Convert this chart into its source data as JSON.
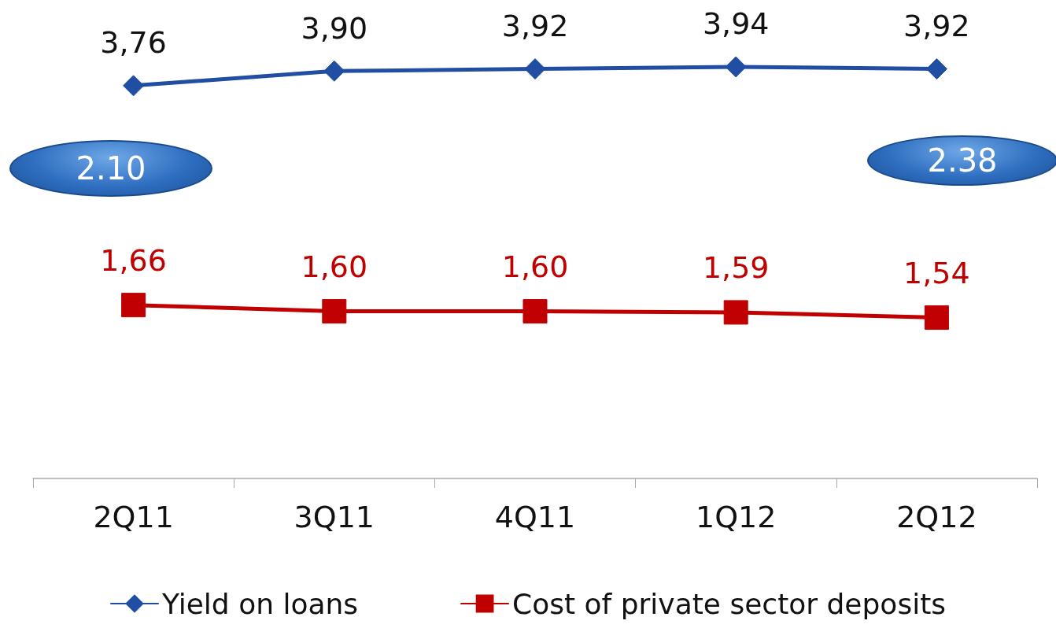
{
  "chart_data": {
    "type": "line",
    "categories": [
      "2Q11",
      "3Q11",
      "4Q11",
      "1Q12",
      "2Q12"
    ],
    "series": [
      {
        "name": "Yield on loans",
        "color": "#1f4ea3",
        "marker": "diamond",
        "values": [
          3.76,
          3.9,
          3.92,
          3.94,
          3.92
        ],
        "value_labels": [
          "3,76",
          "3,90",
          "3,92",
          "3,94",
          "3,92"
        ]
      },
      {
        "name": "Cost of private sector deposits",
        "color": "#c00000",
        "marker": "square",
        "values": [
          1.66,
          1.6,
          1.6,
          1.59,
          1.54
        ],
        "value_labels": [
          "1,66",
          "1,60",
          "1,60",
          "1,59",
          "1,54"
        ]
      }
    ],
    "annotations": [
      "2.10",
      "2.38"
    ],
    "legend": "bottom",
    "grid": false,
    "tick_labels": "x"
  }
}
